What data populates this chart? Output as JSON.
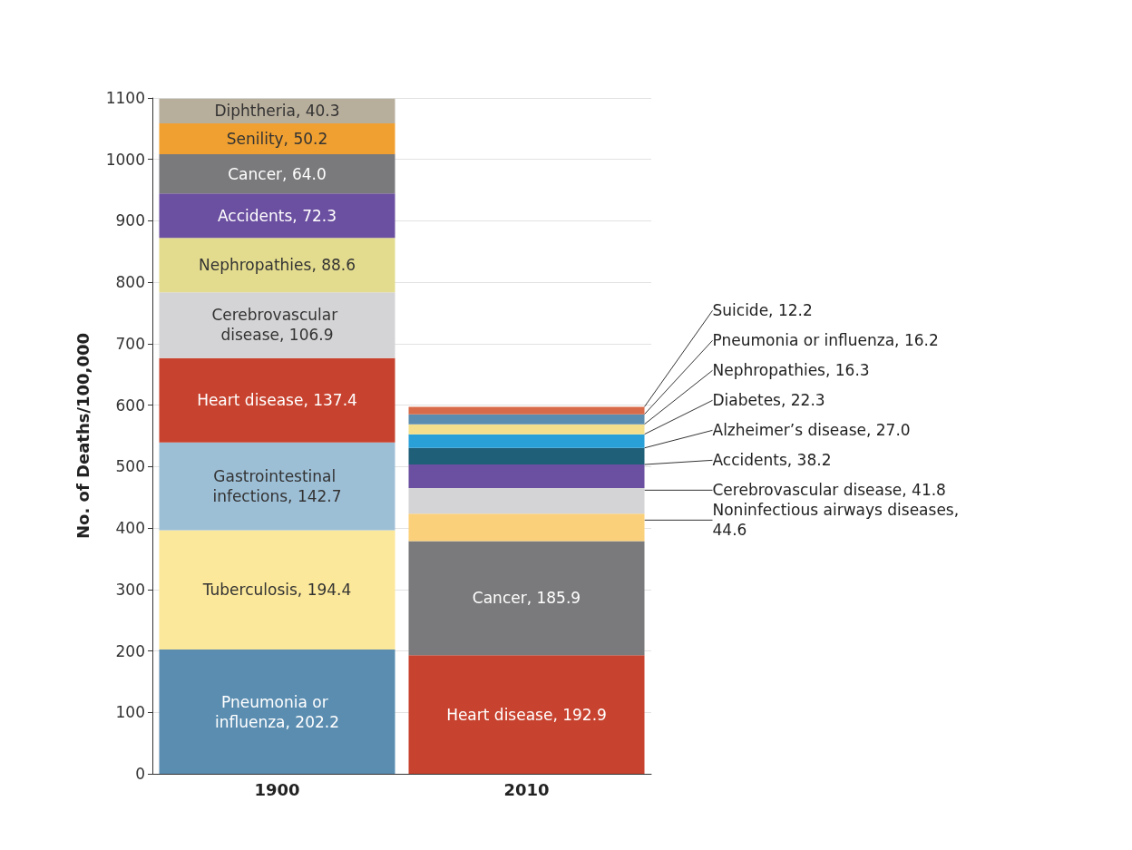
{
  "chart_data": {
    "type": "bar",
    "stacked": true,
    "ylabel": "No. of Deaths/100,000",
    "categories": [
      "1900",
      "2010"
    ],
    "ylim": [
      0,
      1100
    ],
    "yticks": [
      0,
      100,
      200,
      300,
      400,
      500,
      600,
      700,
      800,
      900,
      1000,
      1100
    ],
    "grid": "y",
    "series": [
      {
        "color": "#5b8db0",
        "values": [
          202.2,
          null
        ],
        "value_labels": [
          "Pneumonia or influenza, 202.2",
          null
        ]
      },
      {
        "color": "#fce89a",
        "values": [
          194.4,
          null
        ],
        "value_labels": [
          "Tuberculosis, 194.4",
          null
        ]
      },
      {
        "color": "#9dbfd6",
        "values": [
          142.7,
          null
        ],
        "value_labels": [
          "Gastrointestinal infections, 142.7",
          null
        ]
      },
      {
        "color": "#c8432f",
        "values": [
          137.4,
          null
        ],
        "value_labels": [
          "Heart disease, 137.4",
          null
        ]
      },
      {
        "color": "#d4d4d6",
        "values": [
          106.9,
          null
        ],
        "value_labels": [
          "Cerebrovascular disease, 106.9",
          null
        ]
      },
      {
        "color": "#e3db8e",
        "values": [
          88.6,
          null
        ],
        "value_labels": [
          "Nephropathies, 88.6",
          null
        ]
      },
      {
        "color": "#6b4fa0",
        "values": [
          72.3,
          null
        ],
        "value_labels": [
          "Accidents, 72.3",
          null
        ]
      },
      {
        "color": "#7a7a7c",
        "values": [
          64.0,
          null
        ],
        "value_labels": [
          "Cancer, 64.0",
          null
        ]
      },
      {
        "color": "#f0a030",
        "values": [
          50.2,
          null
        ],
        "value_labels": [
          "Senility, 50.2",
          null
        ]
      },
      {
        "color": "#b8ae9c",
        "values": [
          40.3,
          null
        ],
        "value_labels": [
          "Diphtheria, 40.3",
          null
        ]
      },
      {
        "color": "#c8432f",
        "values": [
          null,
          192.9
        ],
        "value_labels": [
          null,
          "Heart disease, 192.9"
        ]
      },
      {
        "color": "#7a7a7c",
        "values": [
          null,
          185.9
        ],
        "value_labels": [
          null,
          "Cancer, 185.9"
        ]
      },
      {
        "color": "#fbd07a",
        "values": [
          null,
          44.6
        ],
        "value_labels": [
          null,
          "Noninfectious airways diseases, 44.6"
        ]
      },
      {
        "color": "#d4d4d6",
        "values": [
          null,
          41.8
        ],
        "value_labels": [
          null,
          "Cerebrovascular disease, 41.8"
        ]
      },
      {
        "color": "#6b4fa0",
        "values": [
          null,
          38.2
        ],
        "value_labels": [
          null,
          "Accidents, 38.2"
        ]
      },
      {
        "color": "#1f5f78",
        "values": [
          null,
          27.0
        ],
        "value_labels": [
          null,
          "Alzheimer’s disease, 27.0"
        ]
      },
      {
        "color": "#2aa0d8",
        "values": [
          null,
          22.3
        ],
        "value_labels": [
          null,
          "Diabetes, 22.3"
        ]
      },
      {
        "color": "#f4e08c",
        "values": [
          null,
          16.3
        ],
        "value_labels": [
          null,
          "Nephropathies, 16.3"
        ]
      },
      {
        "color": "#5b8db0",
        "values": [
          null,
          16.2
        ],
        "value_labels": [
          null,
          "Pneumonia or influenza, 16.2"
        ]
      },
      {
        "color": "#d86b4a",
        "values": [
          null,
          12.2
        ],
        "value_labels": [
          null,
          "Suicide, 12.2"
        ]
      }
    ]
  }
}
